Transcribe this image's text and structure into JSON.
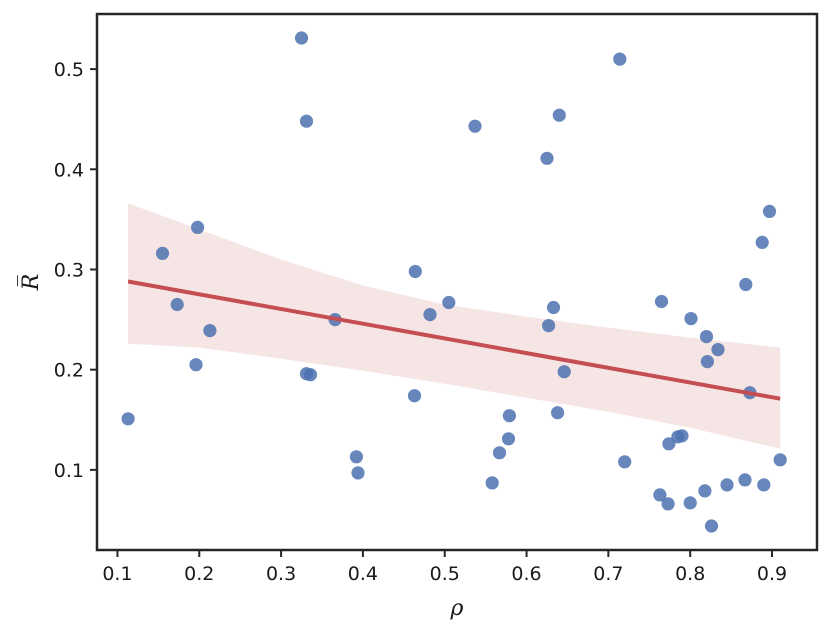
{
  "chart_data": {
    "type": "scatter",
    "title": "",
    "xlabel": "ρ",
    "ylabel": "R̅",
    "xlim": [
      0.075,
      0.955
    ],
    "ylim": [
      0.02,
      0.555
    ],
    "xticks": [
      0.1,
      0.2,
      0.3,
      0.4,
      0.5,
      0.6,
      0.7,
      0.8,
      0.9
    ],
    "xtick_labels": [
      "0.1",
      "0.2",
      "0.3",
      "0.4",
      "0.5",
      "0.6",
      "0.7",
      "0.8",
      "0.9"
    ],
    "yticks": [
      0.1,
      0.2,
      0.3,
      0.4,
      0.5
    ],
    "ytick_labels": [
      "0.1",
      "0.2",
      "0.3",
      "0.4",
      "0.5"
    ],
    "grid": false,
    "legend": "none",
    "colors": {
      "points": "#4c72b0",
      "regression_line": "#c44e52",
      "confidence_band": "#c44e52",
      "axes": "#262626"
    },
    "series": [
      {
        "kind": "points",
        "x": [
          0.113,
          0.155,
          0.173,
          0.196,
          0.198,
          0.213,
          0.325,
          0.331,
          0.331,
          0.336,
          0.366,
          0.392,
          0.394,
          0.463,
          0.464,
          0.482,
          0.505,
          0.537,
          0.558,
          0.567,
          0.578,
          0.579,
          0.625,
          0.627,
          0.633,
          0.638,
          0.64,
          0.646,
          0.714,
          0.72,
          0.763,
          0.765,
          0.773,
          0.774,
          0.785,
          0.79,
          0.8,
          0.801,
          0.818,
          0.82,
          0.821,
          0.826,
          0.834,
          0.845,
          0.867,
          0.868,
          0.873,
          0.888,
          0.89,
          0.897,
          0.91
        ],
        "y": [
          0.151,
          0.316,
          0.265,
          0.205,
          0.342,
          0.239,
          0.531,
          0.448,
          0.196,
          0.195,
          0.25,
          0.113,
          0.097,
          0.174,
          0.298,
          0.255,
          0.267,
          0.443,
          0.087,
          0.117,
          0.131,
          0.154,
          0.411,
          0.244,
          0.262,
          0.157,
          0.454,
          0.198,
          0.51,
          0.108,
          0.075,
          0.268,
          0.066,
          0.126,
          0.133,
          0.134,
          0.067,
          0.251,
          0.079,
          0.233,
          0.208,
          0.044,
          0.22,
          0.085,
          0.09,
          0.285,
          0.177,
          0.327,
          0.085,
          0.358,
          0.11
        ]
      },
      {
        "kind": "regression",
        "x": [
          0.113,
          0.91
        ],
        "y": [
          0.288,
          0.171
        ]
      },
      {
        "kind": "confidence_band",
        "x": [
          0.113,
          0.2,
          0.3,
          0.4,
          0.5,
          0.6,
          0.7,
          0.8,
          0.91
        ],
        "upper": [
          0.366,
          0.34,
          0.31,
          0.284,
          0.265,
          0.253,
          0.242,
          0.232,
          0.222
        ],
        "lower": [
          0.226,
          0.222,
          0.211,
          0.199,
          0.186,
          0.172,
          0.158,
          0.142,
          0.121
        ]
      }
    ]
  }
}
